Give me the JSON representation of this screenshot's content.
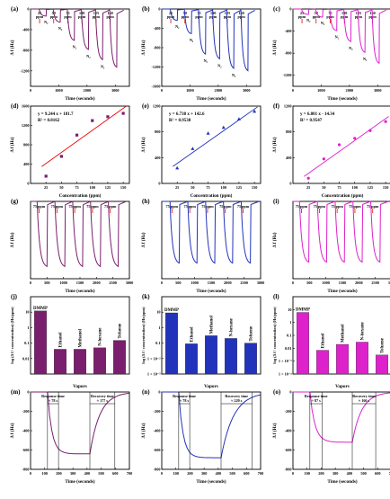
{
  "chart_data": [
    {
      "id": "a",
      "label": "(a)",
      "type": "line",
      "color": "#7a1f6d",
      "xlabel": "Time (seconds)",
      "ylabel": "Δ f (Hz)",
      "xlim": [
        0,
        3500
      ],
      "ylim": [
        -1500,
        0
      ],
      "xticks": [
        0,
        1000,
        2000,
        3000
      ],
      "yticks": [
        0,
        -400,
        -800,
        -1200
      ],
      "levels": [
        {
          "d": -140,
          "l": "25 ppm"
        },
        {
          "d": -260,
          "l": "50 ppm"
        },
        {
          "d": -620,
          "l": "75 ppm"
        },
        {
          "d": -800,
          "l": "100 ppm"
        },
        {
          "d": -1000,
          "l": "125 ppm"
        },
        {
          "d": -1150,
          "l": "150 ppm"
        }
      ],
      "cycle": {
        "t0": 300,
        "period": 500,
        "resp": 250
      },
      "markers": [
        "N₂",
        "N₂",
        "N₂",
        "N₂",
        "N₂"
      ]
    },
    {
      "id": "b",
      "label": "(b)",
      "type": "line",
      "color": "#2233bb",
      "xlabel": "Time (seconds)",
      "ylabel": "Δ f (Hz)",
      "xlim": [
        0,
        3500
      ],
      "ylim": [
        -1600,
        0
      ],
      "xticks": [
        0,
        1000,
        2000,
        3000
      ],
      "yticks": [
        0,
        -400,
        -800,
        -1200,
        -1600
      ],
      "levels": [
        {
          "d": -240,
          "l": "25 ppm"
        },
        {
          "d": -520,
          "l": "50 ppm"
        },
        {
          "d": -950,
          "l": "75 ppm"
        },
        {
          "d": -1050,
          "l": "100 ppm"
        },
        {
          "d": -1250,
          "l": "125 ppm"
        },
        {
          "d": -1300,
          "l": "150 ppm"
        }
      ],
      "cycle": {
        "t0": 300,
        "period": 500,
        "resp": 250
      },
      "markers": [
        "N₂",
        "N₂",
        "N₂",
        "N₂",
        "N₂"
      ]
    },
    {
      "id": "c",
      "label": "(c)",
      "type": "line",
      "color": "#dd22cc",
      "xlabel": "Time (seconds)",
      "ylabel": "Δ f (Hz)",
      "xlim": [
        0,
        3500
      ],
      "ylim": [
        -1400,
        0
      ],
      "xticks": [
        0,
        1000,
        2000,
        3000
      ],
      "yticks": [
        0,
        -400,
        -800,
        -1200
      ],
      "levels": [
        {
          "d": -100,
          "l": "25 ppm"
        },
        {
          "d": -150,
          "l": "50 ppm"
        },
        {
          "d": -400,
          "l": "75 ppm"
        },
        {
          "d": -600,
          "l": "100 ppm"
        },
        {
          "d": -800,
          "l": "125 ppm"
        },
        {
          "d": -1000,
          "l": "150 ppm"
        }
      ],
      "cycle": {
        "t0": 300,
        "period": 500,
        "resp": 250
      },
      "markers": [
        "N₂",
        "N₂",
        "N₂",
        "N₂",
        "N₂"
      ]
    },
    {
      "id": "d",
      "label": "(d)",
      "type": "scatter",
      "color": "#7a1f6d",
      "xlabel": "Concentration (ppm)",
      "ylabel": "Δ f (Hz)",
      "xlim": [
        0,
        160
      ],
      "ylim": [
        0,
        1600
      ],
      "xticks": [
        25,
        50,
        75,
        100,
        125,
        150
      ],
      "yticks": [
        0,
        400,
        800,
        1200,
        1600
      ],
      "x": [
        25,
        50,
        75,
        100,
        125,
        150
      ],
      "y": [
        150,
        560,
        1000,
        1300,
        1380,
        1450
      ],
      "fit": {
        "m": 9.244,
        "b": 181.7
      },
      "eq": "y = 9.244 x + 181.7",
      "r2": "R² = 0.8162"
    },
    {
      "id": "e",
      "label": "(e)",
      "type": "scatter",
      "color": "#2233bb",
      "xlabel": "Concentration (ppm)",
      "ylabel": "Δ f (Hz)",
      "xlim": [
        0,
        160
      ],
      "ylim": [
        0,
        1200
      ],
      "xticks": [
        25,
        50,
        75,
        100,
        125,
        150
      ],
      "yticks": [
        0,
        400,
        800,
        1200
      ],
      "x": [
        25,
        50,
        75,
        100,
        125,
        150
      ],
      "y": [
        240,
        540,
        780,
        870,
        1000,
        1120
      ],
      "fit": {
        "m": 6.738,
        "b": 142.6
      },
      "eq": "y = 6.738 x + 142.6",
      "r2": "R² = 0.9538"
    },
    {
      "id": "f",
      "label": "(f)",
      "type": "scatter",
      "color": "#dd22cc",
      "xlabel": "Concentration (ppm)",
      "ylabel": "Δ f (Hz)",
      "xlim": [
        0,
        160
      ],
      "ylim": [
        0,
        1200
      ],
      "xticks": [
        25,
        50,
        75,
        100,
        125,
        150
      ],
      "yticks": [
        0,
        400,
        800,
        1200
      ],
      "x": [
        25,
        50,
        75,
        100,
        125,
        150
      ],
      "y": [
        80,
        380,
        600,
        700,
        820,
        960
      ],
      "fit": {
        "m": 6.801,
        "b": -14.34
      },
      "eq": "y = 6.801 x - 14.34",
      "r2": "R² = 0.9547"
    },
    {
      "id": "g",
      "label": "(g)",
      "type": "line",
      "color": "#7a1f6d",
      "xlabel": "Time (seconds)",
      "ylabel": "Δ f (Hz)",
      "xlim": [
        0,
        3000
      ],
      "ylim": [
        -700,
        0
      ],
      "xticks": [
        0,
        500,
        1000,
        1500,
        2000,
        2500,
        3000
      ],
      "yticks": [],
      "pulses": {
        "count": 5,
        "t0": 200,
        "period": 540,
        "resp": 300,
        "depth": -600
      },
      "annot": "75 ppm"
    },
    {
      "id": "h",
      "label": "(h)",
      "type": "line",
      "color": "#2233bb",
      "xlabel": "Time (seconds)",
      "ylabel": "Δ f (Hz)",
      "xlim": [
        0,
        3000
      ],
      "ylim": [
        -800,
        0
      ],
      "xticks": [
        0,
        500,
        1000,
        1500,
        2000,
        2500,
        3000
      ],
      "yticks": [],
      "pulses": {
        "count": 5,
        "t0": 250,
        "period": 540,
        "resp": 280,
        "depth": -650
      },
      "annot": "75 ppm"
    },
    {
      "id": "i",
      "label": "(i)",
      "type": "line",
      "color": "#dd22cc",
      "xlabel": "Time (seconds)",
      "ylabel": "Δ f (Hz)",
      "xlim": [
        0,
        3000
      ],
      "ylim": [
        -700,
        0
      ],
      "xticks": [
        0,
        500,
        1000,
        1500,
        2000,
        2500,
        3000
      ],
      "yticks": [],
      "pulses": {
        "count": 5,
        "t0": 200,
        "period": 540,
        "resp": 280,
        "depth": -560
      },
      "annot": "75 ppm"
    },
    {
      "id": "j",
      "label": "(j)",
      "type": "bar",
      "color": "#7a1f6d",
      "xlabel": "Vapors",
      "ylabel": "log (Δ f / concentration) (Hz/ppm)",
      "log": true,
      "ylim": [
        0.001,
        100
      ],
      "yticks": [
        {
          "v": 0.01,
          "l": "0.01"
        },
        {
          "v": 0.1,
          "l": "0.1"
        },
        {
          "v": 1,
          "l": "1"
        },
        {
          "v": 10,
          "l": "10"
        }
      ],
      "categories": [
        "DMMP",
        "Ethanol",
        "Methanol",
        "N-hexane",
        "Toluene"
      ],
      "values": [
        12,
        0.04,
        0.04,
        0.05,
        0.15
      ]
    },
    {
      "id": "k",
      "label": "(k)",
      "type": "bar",
      "color": "#2233bb",
      "xlabel": "Vapors",
      "ylabel": "log (Δ f / concentration) (Hz/ppm)",
      "log": true,
      "ylim": [
        0.001,
        100
      ],
      "yticks": [
        {
          "v": 0.001,
          "l": "1 × 10⁻³"
        },
        {
          "v": 0.01,
          "l": "1 × 10⁻²"
        },
        {
          "v": 0.1,
          "l": "0.1"
        },
        {
          "v": 1,
          "l": "1"
        },
        {
          "v": 10,
          "l": "10"
        }
      ],
      "categories": [
        "DMMP",
        "Ethanol",
        "Methanol",
        "N-hexane",
        "Toluene"
      ],
      "values": [
        9,
        0.09,
        0.3,
        0.2,
        0.1
      ]
    },
    {
      "id": "l",
      "label": "(l)",
      "type": "bar",
      "color": "#dd22cc",
      "xlabel": "Vapors",
      "ylabel": "log (Δ f / concentration) (Hz/ppm)",
      "log": true,
      "ylim": [
        0.0001,
        100
      ],
      "yticks": [
        {
          "v": 0.0001,
          "l": "1 × 10⁻⁴"
        },
        {
          "v": 0.001,
          "l": "1 × 10⁻³"
        },
        {
          "v": 0.01,
          "l": "0.01"
        },
        {
          "v": 0.1,
          "l": "0.1"
        },
        {
          "v": 1,
          "l": "1"
        },
        {
          "v": 10,
          "l": "10"
        }
      ],
      "categories": [
        "DMMP",
        "Ethanol",
        "Methanol",
        "N-hexane",
        "Toluene"
      ],
      "values": [
        6,
        0.007,
        0.02,
        0.03,
        0.003
      ]
    },
    {
      "id": "m",
      "label": "(m)",
      "type": "line",
      "color": "#7a1f6d",
      "xlabel": "Time (seconds)",
      "ylabel": "Δ f (Hz)",
      "xlim": [
        0,
        700
      ],
      "ylim": [
        -800,
        0
      ],
      "xticks": [
        0,
        100,
        200,
        300,
        400,
        500,
        600,
        700
      ],
      "yticks": [
        0,
        -200,
        -400,
        -600,
        -800
      ],
      "single": {
        "on": 120,
        "resp": 78,
        "off": 420,
        "rec": 177,
        "depth": -640
      },
      "response": "Response time",
      "response_val": "≈ 78 s",
      "recovery": "Recovery time",
      "recovery_val": "≈ 177 s"
    },
    {
      "id": "n",
      "label": "(n)",
      "type": "line",
      "color": "#2233bb",
      "xlabel": "Time (seconds)",
      "ylabel": "Δ f (Hz)",
      "xlim": [
        0,
        700
      ],
      "ylim": [
        -800,
        0
      ],
      "xticks": [
        0,
        100,
        200,
        300,
        400,
        500,
        600,
        700
      ],
      "yticks": [
        0,
        -200,
        -400,
        -600,
        -800
      ],
      "single": {
        "on": 120,
        "resp": 78,
        "off": 420,
        "rec": 220,
        "depth": -680
      },
      "response": "Response time",
      "response_val": "≈ 78 s",
      "recovery": "Recovery time",
      "recovery_val": "≈ 220 s"
    },
    {
      "id": "o",
      "label": "(o)",
      "type": "line",
      "color": "#dd22cc",
      "xlabel": "Time (seconds)",
      "ylabel": "Δ f (Hz)",
      "xlim": [
        0,
        700
      ],
      "ylim": [
        -800,
        0
      ],
      "xticks": [
        0,
        100,
        200,
        300,
        400,
        500,
        600,
        700
      ],
      "yticks": [
        0,
        -200,
        -400,
        -600,
        -800
      ],
      "single": {
        "on": 120,
        "resp": 87,
        "off": 420,
        "rec": 166,
        "depth": -520
      },
      "response": "Response time",
      "response_val": "≈ 87 s",
      "recovery": "Recovery time",
      "recovery_val": "≈ 166 s"
    }
  ]
}
